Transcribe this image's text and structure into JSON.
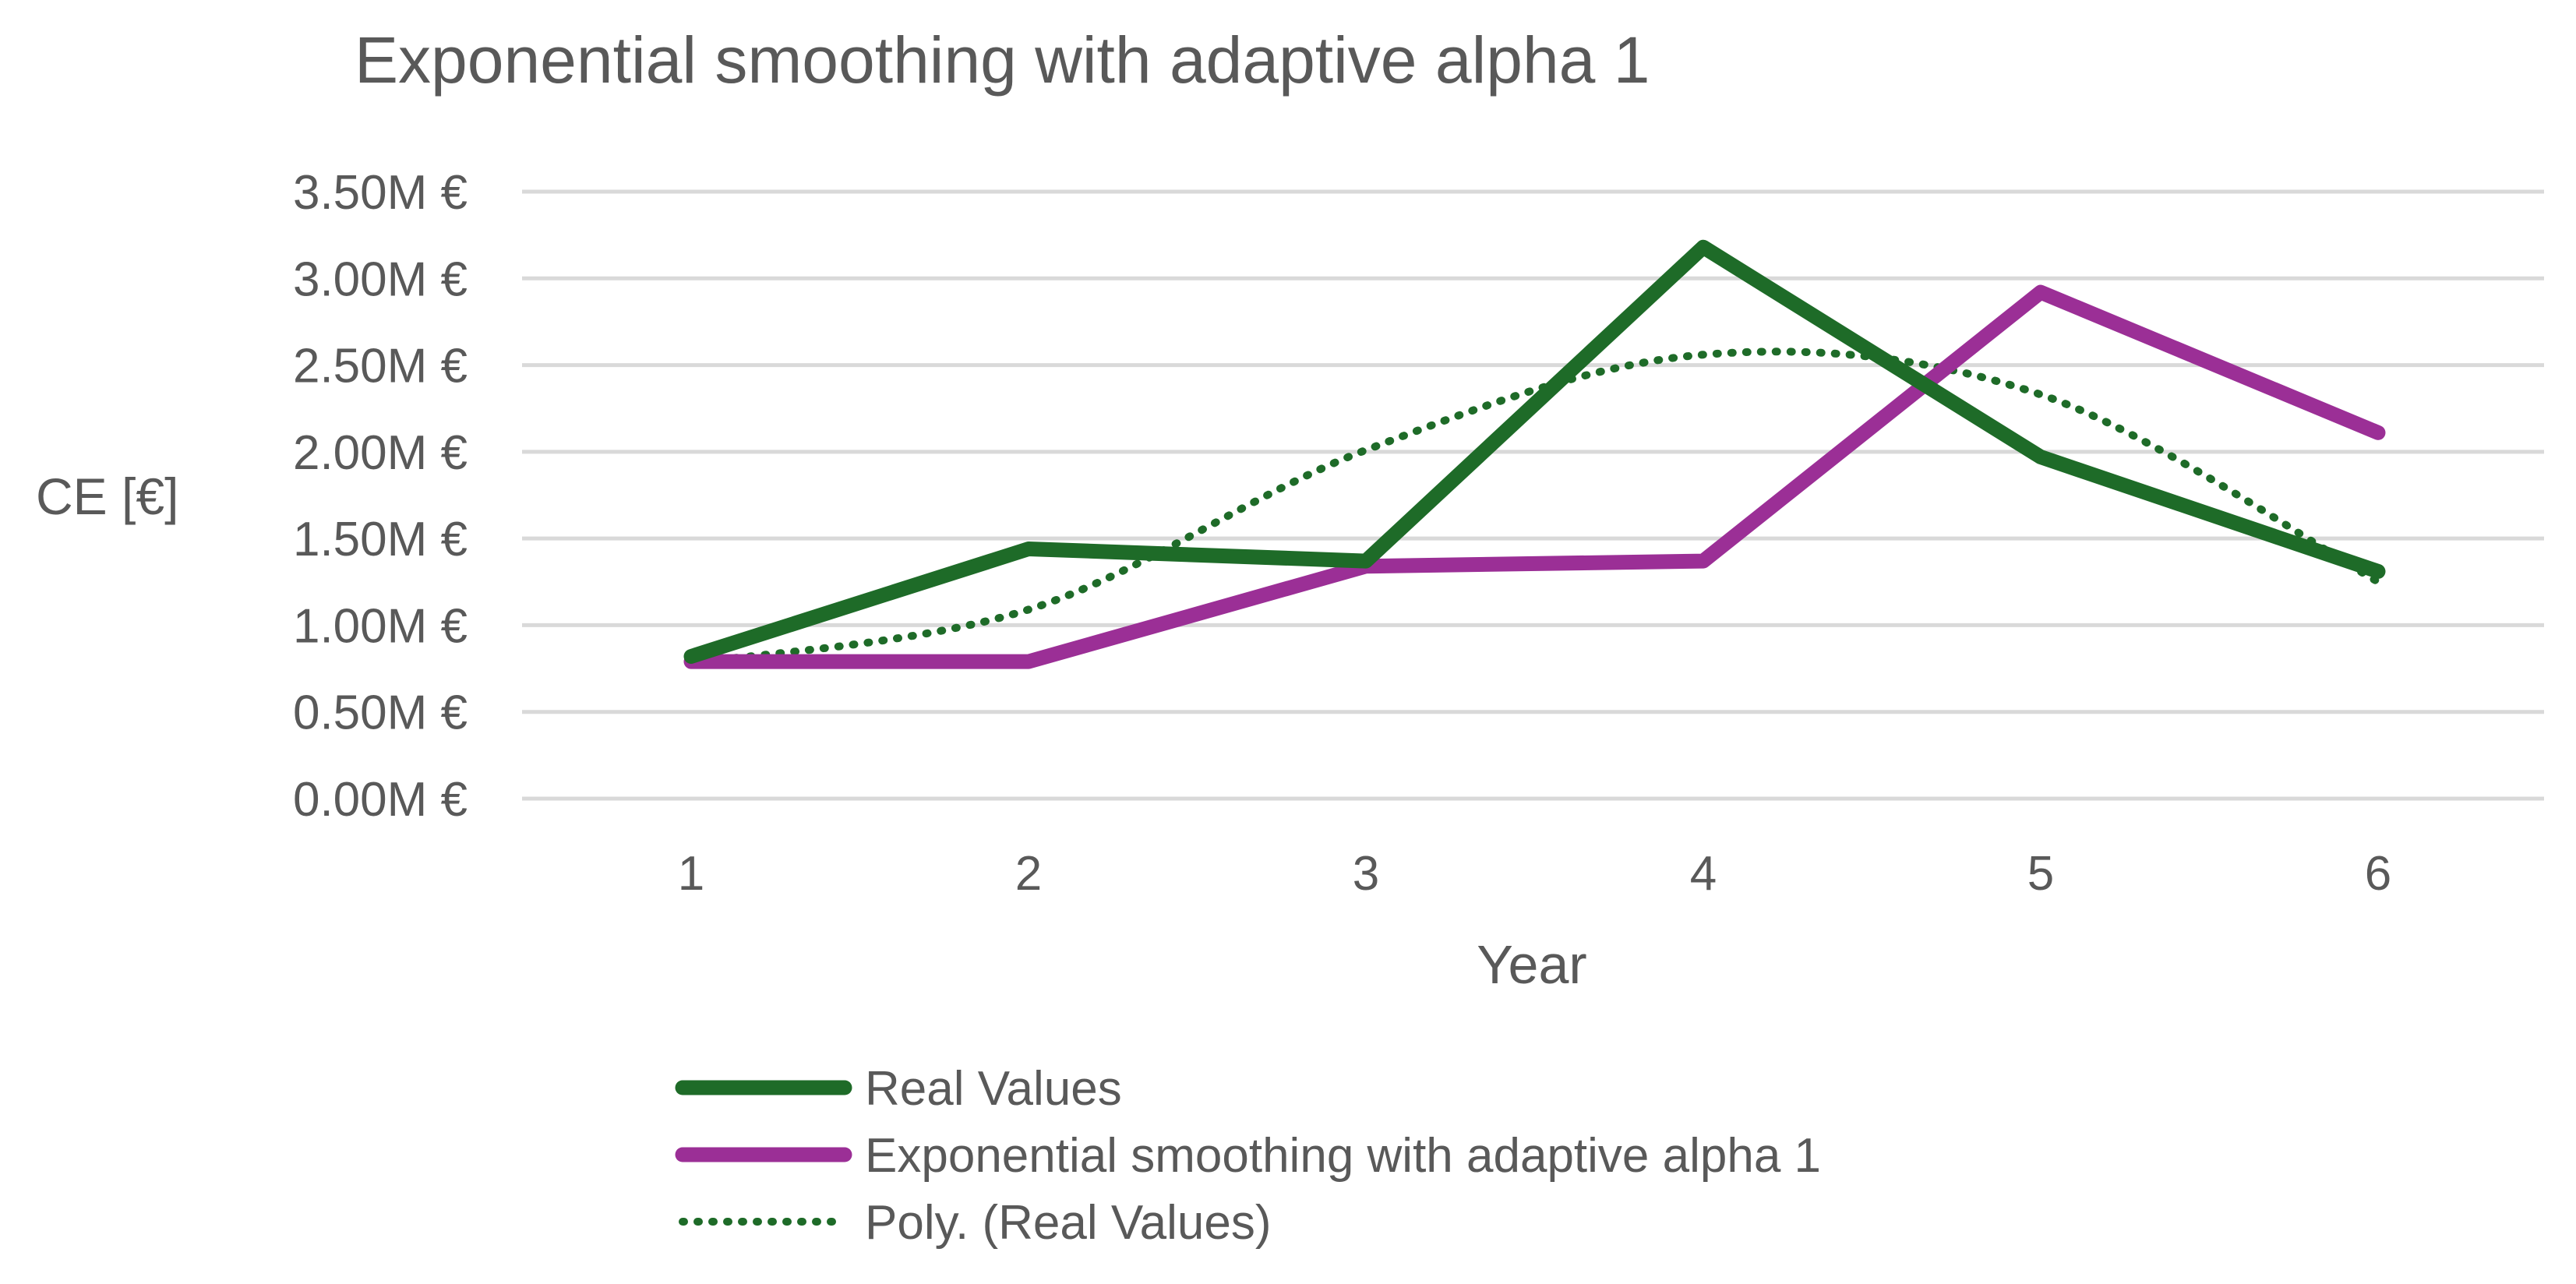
{
  "chart_data": {
    "type": "line",
    "title": "Exponential smoothing with adaptive alpha 1",
    "xlabel": "Year",
    "ylabel": "CE [€]",
    "x": [
      1,
      2,
      3,
      4,
      5,
      6
    ],
    "x_tick_labels": [
      "1",
      "2",
      "3",
      "4",
      "5",
      "6"
    ],
    "ylim": [
      0,
      3.5
    ],
    "y_ticks": [
      0,
      0.5,
      1.0,
      1.5,
      2.0,
      2.5,
      3.0,
      3.5
    ],
    "y_tick_labels": [
      "0.00M €",
      "0.50M €",
      "1.00M €",
      "1.50M €",
      "2.00M €",
      "2.50M €",
      "3.00M €",
      "3.50M €"
    ],
    "grid": true,
    "legend_position": "bottom",
    "series": [
      {
        "name": "Real Values",
        "values": [
          0.82,
          1.44,
          1.37,
          3.18,
          1.97,
          1.31
        ],
        "color": "#1E6B28",
        "style": "solid"
      },
      {
        "name": "Exponential smoothing with adaptive alpha 1",
        "values": [
          0.79,
          0.79,
          1.34,
          1.37,
          2.92,
          2.11
        ],
        "color": "#9B2F96",
        "style": "solid"
      },
      {
        "name": "Poly. (Real Values)",
        "values": [
          0.78,
          1.09,
          2.01,
          2.56,
          2.33,
          1.25
        ],
        "color": "#1E6B28",
        "style": "dotted"
      }
    ]
  }
}
